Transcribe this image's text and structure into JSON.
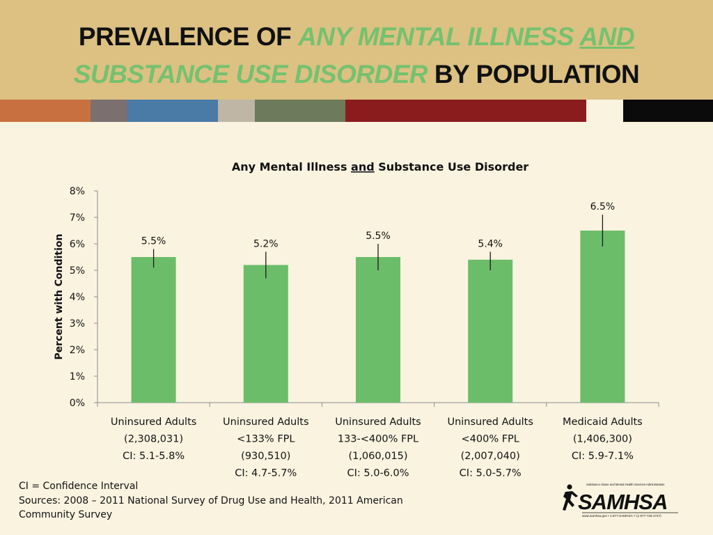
{
  "slide": {
    "title_parts": {
      "p1": "PREVALENCE OF ",
      "p2": "ANY MENTAL ILLNESS ",
      "p3": "AND",
      "p4": "SUBSTANCE USE DISORDER",
      "p5": " BY POPULATION"
    },
    "colors": {
      "header_bg": "#dcc183",
      "background": "#f9f3e0",
      "highlight": "#75c16f",
      "bar": "#6cbd6a",
      "stripes": [
        "#c8703f",
        "#7b6f6f",
        "#4a7aa6",
        "#bfb6a6",
        "#6d7a5c",
        "#8b1c1d",
        "#f9f3e0",
        "#0b0b0b"
      ]
    },
    "footer": {
      "line1": "CI = Confidence Interval",
      "line2": "Sources: 2008 – 2011 National Survey of Drug Use and Health, 2011 American",
      "line3": "Community Survey"
    },
    "logo": {
      "name": "samhsa-logo",
      "lettering": "SAMHSA",
      "tagline": "Substance Abuse and Mental Health Services Administration",
      "contact": "www.samhsa.gov • 1-877-SAMHSA-7 (1-877-726-4727)"
    }
  },
  "chart_data": {
    "type": "bar",
    "title_parts": [
      "Any Mental Illness ",
      "and",
      " Substance Use Disorder"
    ],
    "ylabel": "Percent with Condition",
    "ylim": [
      0,
      8
    ],
    "yticks": [
      0,
      1,
      2,
      3,
      4,
      5,
      6,
      7,
      8
    ],
    "ytick_labels": [
      "0%",
      "1%",
      "2%",
      "3%",
      "4%",
      "5%",
      "6%",
      "7%",
      "8%"
    ],
    "categories": [
      [
        "Uninsured Adults",
        "(2,308,031)",
        "CI: 5.1-5.8%"
      ],
      [
        "Uninsured Adults",
        "<133% FPL",
        "(930,510)",
        "CI: 4.7-5.7%"
      ],
      [
        "Uninsured Adults",
        "133-<400% FPL",
        "(1,060,015)",
        "CI: 5.0-6.0%"
      ],
      [
        "Uninsured Adults",
        "<400% FPL",
        "(2,007,040)",
        "CI: 5.0-5.7%"
      ],
      [
        "Medicaid Adults",
        "(1,406,300)",
        "CI: 5.9-7.1%"
      ]
    ],
    "values": [
      5.5,
      5.2,
      5.5,
      5.4,
      6.5
    ],
    "data_labels": [
      "5.5%",
      "5.2%",
      "5.5%",
      "5.4%",
      "6.5%"
    ],
    "ci": [
      [
        5.1,
        5.8
      ],
      [
        4.7,
        5.7
      ],
      [
        5.0,
        6.0
      ],
      [
        5.0,
        5.7
      ],
      [
        5.9,
        7.1
      ]
    ],
    "grid": false,
    "legend": "none"
  }
}
